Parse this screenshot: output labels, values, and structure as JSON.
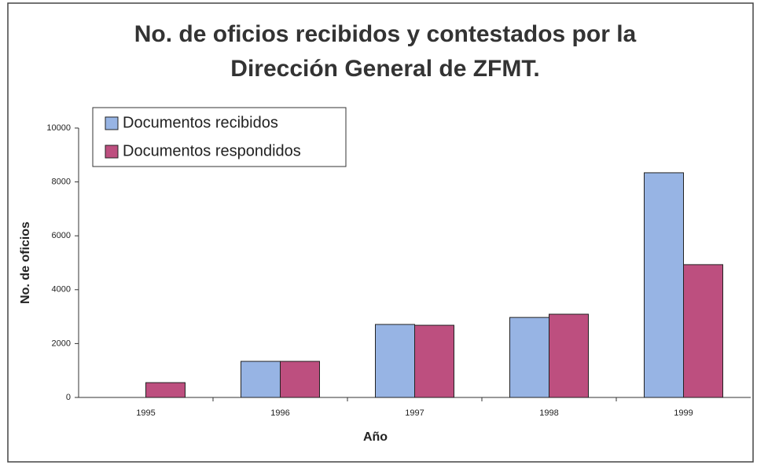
{
  "chart_data": {
    "type": "bar",
    "title": "No. de oficios recibidos y contestados por la Dirección General de ZFMT.",
    "xlabel": "Año",
    "ylabel": "No. de oficios",
    "categories": [
      "1995",
      "1996",
      "1997",
      "1998",
      "1999"
    ],
    "series": [
      {
        "name": "Documentos recibidos",
        "color": "#97b4e4",
        "values": [
          null,
          1340,
          2710,
          2970,
          8340
        ]
      },
      {
        "name": "Documentos respondidos",
        "color": "#bd4f7f",
        "values": [
          550,
          1340,
          2680,
          3090,
          4930
        ]
      }
    ],
    "ylim": [
      0,
      10000
    ],
    "yticks": [
      0,
      2000,
      4000,
      6000,
      8000,
      10000
    ],
    "legend": "upper left"
  }
}
